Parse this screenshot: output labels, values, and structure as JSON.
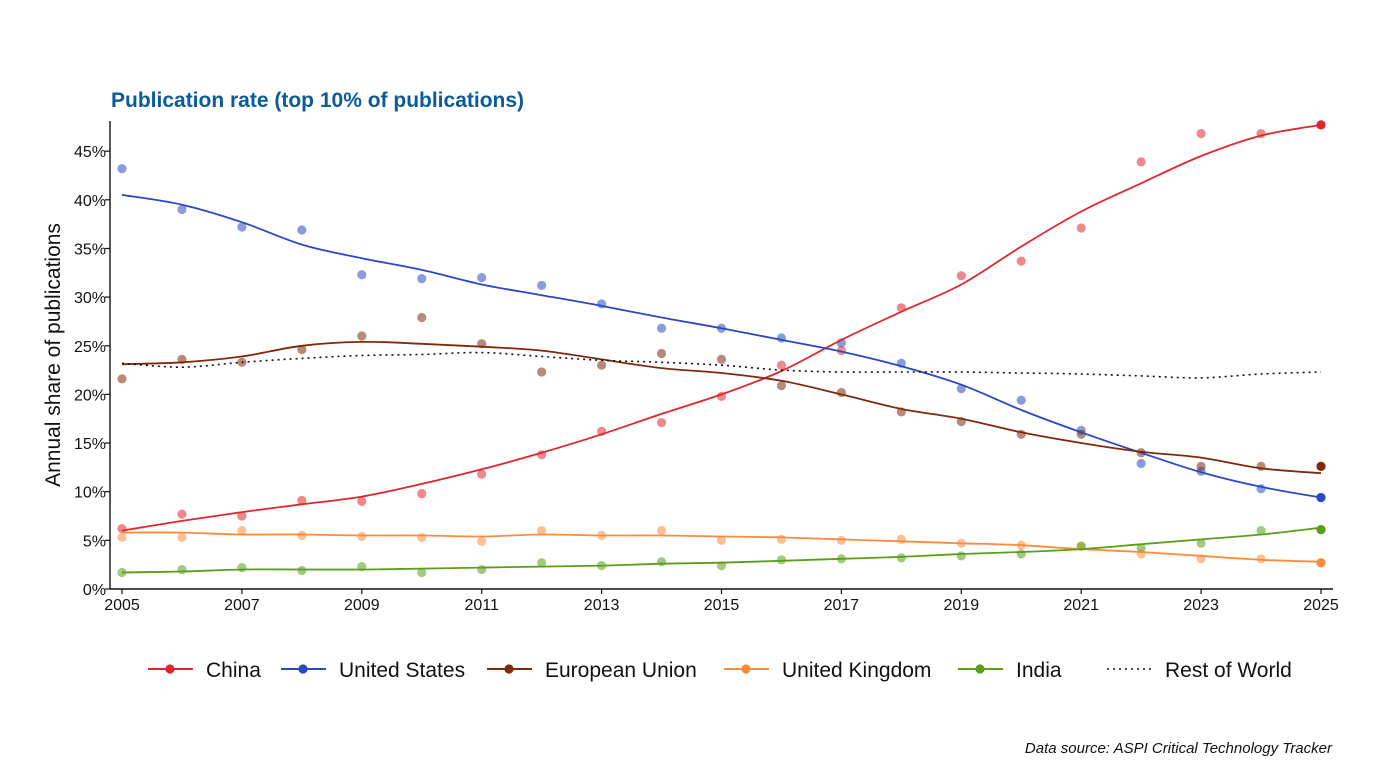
{
  "chart_data": {
    "type": "line",
    "title": "Publication rate (top 10% of publications)",
    "xlabel": "",
    "ylabel": "Annual share of publications",
    "xlim": [
      2005,
      2025
    ],
    "ylim": [
      0,
      48
    ],
    "x_ticks": [
      2005,
      2007,
      2009,
      2011,
      2013,
      2015,
      2017,
      2019,
      2021,
      2023,
      2025
    ],
    "y_ticks": [
      0,
      5,
      10,
      15,
      20,
      25,
      30,
      35,
      40,
      45
    ],
    "y_tick_labels": [
      "0%",
      "5%",
      "10%",
      "15%",
      "20%",
      "25%",
      "30%",
      "35%",
      "40%",
      "45%"
    ],
    "x": [
      2005,
      2006,
      2007,
      2008,
      2009,
      2010,
      2011,
      2012,
      2013,
      2014,
      2015,
      2016,
      2017,
      2018,
      2019,
      2020,
      2021,
      2022,
      2023,
      2024,
      2025
    ],
    "series": [
      {
        "name": "China",
        "color": "#e0262d",
        "points": [
          6.2,
          7.7,
          7.5,
          9.1,
          9.0,
          9.8,
          11.8,
          13.8,
          16.2,
          17.1,
          19.8,
          23.0,
          24.5,
          28.9,
          32.2,
          33.7,
          37.1,
          43.9,
          46.8,
          46.8,
          47.7
        ],
        "trend": [
          6.0,
          7.0,
          7.9,
          8.7,
          9.5,
          10.8,
          12.3,
          14.0,
          15.9,
          18.0,
          20.0,
          22.4,
          25.6,
          28.5,
          31.3,
          35.2,
          38.8,
          41.7,
          44.5,
          46.6,
          47.7
        ]
      },
      {
        "name": "United States",
        "color": "#2a48c2",
        "points": [
          43.2,
          39.0,
          37.2,
          36.9,
          32.3,
          31.9,
          32.0,
          31.2,
          29.3,
          26.8,
          26.8,
          25.8,
          25.3,
          23.2,
          20.6,
          19.4,
          16.3,
          12.9,
          12.1,
          10.3,
          9.4
        ],
        "trend": [
          40.5,
          39.5,
          37.7,
          35.4,
          34.0,
          32.8,
          31.3,
          30.2,
          29.1,
          27.9,
          26.8,
          25.6,
          24.4,
          22.9,
          21.0,
          18.4,
          16.1,
          14.0,
          12.0,
          10.5,
          9.4
        ]
      },
      {
        "name": "European Union",
        "color": "#7e2a0c",
        "points": [
          21.6,
          23.6,
          23.3,
          24.6,
          26.0,
          27.9,
          25.2,
          22.3,
          23.0,
          24.2,
          23.6,
          20.9,
          20.2,
          18.2,
          17.2,
          15.9,
          15.9,
          14.0,
          12.6,
          12.6,
          12.6
        ],
        "trend": [
          23.1,
          23.3,
          23.9,
          25.0,
          25.4,
          25.2,
          24.9,
          24.5,
          23.6,
          22.7,
          22.2,
          21.4,
          20.0,
          18.5,
          17.5,
          16.1,
          15.0,
          14.1,
          13.5,
          12.4,
          11.9
        ]
      },
      {
        "name": "United Kingdom",
        "color": "#fb8c3c",
        "points": [
          5.3,
          5.3,
          6.0,
          5.5,
          5.4,
          5.3,
          4.9,
          6.0,
          5.5,
          6.0,
          5.0,
          5.1,
          5.0,
          5.1,
          4.7,
          4.5,
          4.4,
          3.6,
          3.1,
          3.1,
          2.7
        ],
        "trend": [
          5.8,
          5.8,
          5.6,
          5.6,
          5.5,
          5.5,
          5.4,
          5.6,
          5.5,
          5.5,
          5.4,
          5.3,
          5.1,
          4.9,
          4.7,
          4.5,
          4.1,
          3.8,
          3.4,
          3.0,
          2.8
        ]
      },
      {
        "name": "India",
        "color": "#5a9e1a",
        "points": [
          1.7,
          2.0,
          2.2,
          1.9,
          2.3,
          1.7,
          2.0,
          2.7,
          2.4,
          2.8,
          2.4,
          3.0,
          3.1,
          3.2,
          3.4,
          3.6,
          4.4,
          4.2,
          4.7,
          6.0,
          6.1
        ],
        "trend": [
          1.7,
          1.8,
          2.0,
          2.0,
          2.0,
          2.1,
          2.2,
          2.3,
          2.4,
          2.6,
          2.7,
          2.9,
          3.1,
          3.3,
          3.6,
          3.8,
          4.1,
          4.6,
          5.1,
          5.6,
          6.3
        ]
      },
      {
        "name": "Rest of World",
        "color": "#111111",
        "dashed": true,
        "points": [],
        "trend": [
          23.2,
          22.8,
          23.3,
          23.7,
          24.0,
          24.1,
          24.3,
          23.9,
          23.5,
          23.3,
          23.0,
          22.5,
          22.3,
          22.3,
          22.3,
          22.2,
          22.1,
          21.9,
          21.7,
          22.1,
          22.3
        ]
      }
    ],
    "legend": {
      "position": "bottom",
      "entries": [
        "China",
        "United States",
        "European Union",
        "United Kingdom",
        "India",
        "Rest of World"
      ]
    },
    "source_note": "Data source: ASPI Critical Technology Tracker"
  }
}
